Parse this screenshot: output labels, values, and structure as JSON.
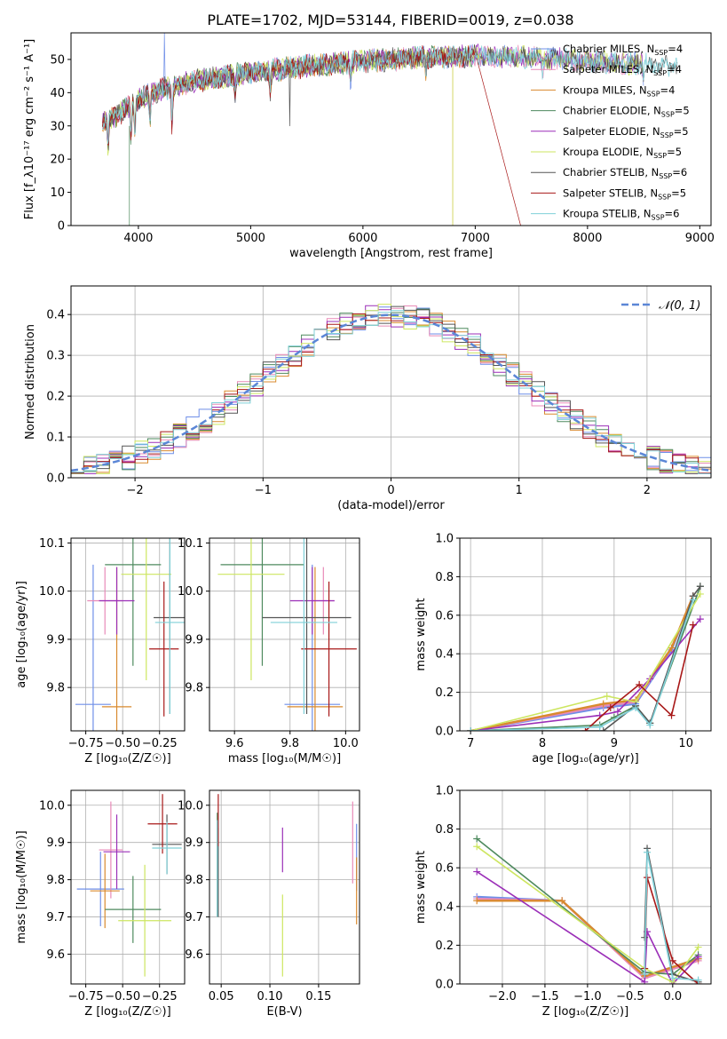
{
  "figure": {
    "title": "PLATE=1702, MJD=53144, FIBERID=0019, z=0.038"
  },
  "models": [
    {
      "name": "Chabrier MILES",
      "nssp": "4",
      "color": "#6f8fe8"
    },
    {
      "name": "Salpeter MILES",
      "nssp": "4",
      "color": "#e88ab8"
    },
    {
      "name": "Kroupa MILES",
      "nssp": "4",
      "color": "#d98a2e"
    },
    {
      "name": "Chabrier ELODIE",
      "nssp": "5",
      "color": "#4e8a5e"
    },
    {
      "name": "Salpeter ELODIE",
      "nssp": "5",
      "color": "#9b2fb8"
    },
    {
      "name": "Kroupa ELODIE",
      "nssp": "5",
      "color": "#cde660"
    },
    {
      "name": "Chabrier STELIB",
      "nssp": "6",
      "color": "#555555"
    },
    {
      "name": "Salpeter STELIB",
      "nssp": "5",
      "color": "#a81818"
    },
    {
      "name": "Kroupa STELIB",
      "nssp": "6",
      "color": "#7fd0d8"
    }
  ],
  "chart_data": [
    {
      "id": "spectrum",
      "type": "line",
      "xlabel": "wavelength [Angstrom, rest frame]",
      "ylabel": "Flux [f_λ10⁻¹⁷ erg cm⁻² s⁻¹ A⁻¹]",
      "xlim": [
        3400,
        9100
      ],
      "ylim": [
        0,
        58
      ],
      "xticks": [
        "4000",
        "5000",
        "6000",
        "7000",
        "8000",
        "9000"
      ],
      "yticks": [
        "0",
        "10",
        "20",
        "30",
        "40",
        "50"
      ],
      "legend": "right",
      "continuum": [
        [
          3680,
          31
        ],
        [
          3800,
          33
        ],
        [
          4000,
          38
        ],
        [
          4200,
          41
        ],
        [
          4500,
          43.5
        ],
        [
          5000,
          46
        ],
        [
          5500,
          48
        ],
        [
          6000,
          49.5
        ],
        [
          6500,
          50.5
        ],
        [
          7000,
          51
        ],
        [
          7500,
          50.5
        ],
        [
          8000,
          49.5
        ],
        [
          8500,
          48.5
        ],
        [
          8800,
          48
        ]
      ],
      "dips": [
        [
          3730,
          -8
        ],
        [
          3934,
          -10
        ],
        [
          3969,
          -9
        ],
        [
          4102,
          -8
        ],
        [
          4300,
          -12
        ],
        [
          4861,
          -6
        ],
        [
          5175,
          -6
        ],
        [
          5890,
          -5
        ],
        [
          6563,
          -4
        ],
        [
          7600,
          -3
        ],
        [
          8500,
          -3
        ]
      ],
      "x_end": [
        8500,
        8500,
        7000,
        7000,
        8500,
        8500,
        8800,
        7000,
        8800
      ]
    },
    {
      "id": "residuals",
      "type": "histogram",
      "xlabel": "(data-model)/error",
      "ylabel": "Normed distribution",
      "xlim": [
        -2.5,
        2.5
      ],
      "ylim": [
        0,
        0.47
      ],
      "xticks": [
        "−2",
        "−1",
        "0",
        "1",
        "2"
      ],
      "yticks": [
        "0.0",
        "0.1",
        "0.2",
        "0.3",
        "0.4"
      ],
      "legend": "top-right",
      "reference_label": "𝒩(0, 1)",
      "reference_color": "#5b86d6",
      "bin_width": 0.1
    },
    {
      "id": "age-vs-z",
      "type": "scatter",
      "xlabel": "Z [log₁₀(Z/Z☉)]",
      "ylabel": "age  [log₁₀(age/yr)]",
      "xlim": [
        -0.85,
        -0.08
      ],
      "ylim": [
        9.71,
        10.11
      ],
      "xticks": [
        "−0.75",
        "−0.50",
        "−0.25"
      ],
      "yticks": [
        "9.8",
        "9.9",
        "10.0",
        "10.1"
      ],
      "points": [
        {
          "x": -0.7,
          "y": 9.765,
          "xerr": 0.12,
          "yerr": 0.29
        },
        {
          "x": -0.62,
          "y": 9.98,
          "xerr": 0.12,
          "yerr": 0.07
        },
        {
          "x": -0.54,
          "y": 9.76,
          "xerr": 0.1,
          "yerr": 0.29
        },
        {
          "x": -0.43,
          "y": 10.055,
          "xerr": 0.19,
          "yerr": 0.21
        },
        {
          "x": -0.54,
          "y": 9.98,
          "xerr": 0.12,
          "yerr": 0.07
        },
        {
          "x": -0.34,
          "y": 10.035,
          "xerr": 0.17,
          "yerr": 0.22
        },
        {
          "x": -0.18,
          "y": 9.945,
          "xerr": 0.11,
          "yerr": 0.2
        },
        {
          "x": -0.22,
          "y": 9.88,
          "xerr": 0.1,
          "yerr": 0.14
        },
        {
          "x": -0.18,
          "y": 9.935,
          "xerr": 0.1,
          "yerr": 0.19
        }
      ]
    },
    {
      "id": "age-vs-mass",
      "type": "scatter",
      "xlabel": "mass [log₁₀(M/M☉)]",
      "ylabel": "",
      "xlim": [
        9.51,
        10.05
      ],
      "ylim": [
        9.71,
        10.11
      ],
      "xticks": [
        "9.6",
        "9.8",
        "10.0"
      ],
      "yticks": [
        "9.8",
        "9.9",
        "10.0",
        "10.1"
      ],
      "points": [
        {
          "x": 9.88,
          "y": 9.765,
          "xerr": 0.1,
          "yerr": 0.29
        },
        {
          "x": 9.92,
          "y": 9.98,
          "xerr": 0.04,
          "yerr": 0.07
        },
        {
          "x": 9.89,
          "y": 9.76,
          "xerr": 0.1,
          "yerr": 0.29
        },
        {
          "x": 9.7,
          "y": 10.055,
          "xerr": 0.15,
          "yerr": 0.21
        },
        {
          "x": 9.88,
          "y": 9.98,
          "xerr": 0.08,
          "yerr": 0.07
        },
        {
          "x": 9.66,
          "y": 10.035,
          "xerr": 0.12,
          "yerr": 0.22
        },
        {
          "x": 9.86,
          "y": 9.945,
          "xerr": 0.16,
          "yerr": 0.2
        },
        {
          "x": 9.94,
          "y": 9.88,
          "xerr": 0.1,
          "yerr": 0.14
        },
        {
          "x": 9.85,
          "y": 9.935,
          "xerr": 0.12,
          "yerr": 0.19
        }
      ]
    },
    {
      "id": "mass-weight-vs-age",
      "type": "line",
      "xlabel": "age  [log₁₀(age/yr)]",
      "ylabel": "mass weight",
      "xlim": [
        6.85,
        10.35
      ],
      "ylim": [
        0,
        1
      ],
      "xticks": [
        "7",
        "8",
        "9",
        "10"
      ],
      "yticks": [
        "0.0",
        "0.2",
        "0.4",
        "0.6",
        "0.8",
        "1.0"
      ],
      "series": [
        {
          "x": [
            7.0,
            8.85,
            9.3,
            9.8,
            10.1
          ],
          "y": [
            0.0,
            0.12,
            0.14,
            0.42,
            0.7
          ]
        },
        {
          "x": [
            7.0,
            8.85,
            9.3,
            9.8,
            10.1
          ],
          "y": [
            0.0,
            0.13,
            0.15,
            0.43,
            0.7
          ]
        },
        {
          "x": [
            7.0,
            8.85,
            9.3,
            9.8,
            10.1
          ],
          "y": [
            0.0,
            0.14,
            0.16,
            0.43,
            0.7
          ]
        },
        {
          "x": [
            7.0,
            8.8,
            9.0,
            9.3,
            9.5,
            10.2
          ],
          "y": [
            0.0,
            0.03,
            0.07,
            0.13,
            0.04,
            0.75
          ]
        },
        {
          "x": [
            7.0,
            8.8,
            9.05,
            9.5,
            10.2
          ],
          "y": [
            0.0,
            0.08,
            0.1,
            0.27,
            0.58
          ]
        },
        {
          "x": [
            7.0,
            8.9,
            9.3,
            10.2
          ],
          "y": [
            0.0,
            0.18,
            0.15,
            0.71
          ]
        },
        {
          "x": [
            7.0,
            8.85,
            9.3,
            9.5,
            10.1,
            10.2
          ],
          "y": [
            0.0,
            0.0,
            0.13,
            0.04,
            0.7,
            0.75
          ]
        },
        {
          "x": [
            8.6,
            8.95,
            9.35,
            9.8,
            10.1
          ],
          "y": [
            0.0,
            0.12,
            0.24,
            0.08,
            0.55
          ]
        },
        {
          "x": [
            7.0,
            8.8,
            9.3,
            9.5,
            10.1
          ],
          "y": [
            0.0,
            0.02,
            0.12,
            0.03,
            0.68
          ]
        }
      ]
    },
    {
      "id": "mass-vs-z",
      "type": "scatter",
      "xlabel": "Z [log₁₀(Z/Z☉)]",
      "ylabel": "mass [log₁₀(M/M☉)]",
      "xlim": [
        -0.85,
        -0.08
      ],
      "ylim": [
        9.52,
        10.04
      ],
      "xticks": [
        "−0.75",
        "−0.50",
        "−0.25"
      ],
      "yticks": [
        "9.6",
        "9.7",
        "9.8",
        "9.9",
        "10.0"
      ],
      "points": [
        {
          "x": -0.65,
          "y": 9.775,
          "xerr": 0.16,
          "yerr": 0.1
        },
        {
          "x": -0.58,
          "y": 9.88,
          "xerr": 0.08,
          "yerr": 0.13
        },
        {
          "x": -0.62,
          "y": 9.77,
          "xerr": 0.1,
          "yerr": 0.1
        },
        {
          "x": -0.43,
          "y": 9.72,
          "xerr": 0.19,
          "yerr": 0.09
        },
        {
          "x": -0.54,
          "y": 9.875,
          "xerr": 0.09,
          "yerr": 0.1
        },
        {
          "x": -0.35,
          "y": 9.69,
          "xerr": 0.18,
          "yerr": 0.15
        },
        {
          "x": -0.2,
          "y": 9.895,
          "xerr": 0.1,
          "yerr": 0.08
        },
        {
          "x": -0.23,
          "y": 9.95,
          "xerr": 0.1,
          "yerr": 0.08
        },
        {
          "x": -0.2,
          "y": 9.885,
          "xerr": 0.1,
          "yerr": 0.07
        }
      ]
    },
    {
      "id": "mass-vs-ebv",
      "type": "scatter",
      "xlabel": "E(B-V)",
      "ylabel": "",
      "xlim": [
        0.038,
        0.192
      ],
      "ylim": [
        9.52,
        10.04
      ],
      "xticks": [
        "0.05",
        "0.10",
        "0.15"
      ],
      "yticks": [
        "9.6",
        "9.7",
        "9.8",
        "9.9",
        "10.0"
      ],
      "points": [
        {
          "x": 0.189,
          "y": 9.86,
          "xerr": 0,
          "yerr": 0.09
        },
        {
          "x": 0.185,
          "y": 9.9,
          "xerr": 0,
          "yerr": 0.11
        },
        {
          "x": 0.189,
          "y": 9.77,
          "xerr": 0,
          "yerr": 0.09
        },
        {
          "x": 0.046,
          "y": 9.84,
          "xerr": 0,
          "yerr": 0.14
        },
        {
          "x": 0.113,
          "y": 9.88,
          "xerr": 0,
          "yerr": 0.06
        },
        {
          "x": 0.113,
          "y": 9.65,
          "xerr": 0,
          "yerr": 0.11
        },
        {
          "x": 0.047,
          "y": 9.82,
          "xerr": 0,
          "yerr": 0.12
        },
        {
          "x": 0.047,
          "y": 9.96,
          "xerr": 0,
          "yerr": 0.07
        },
        {
          "x": 0.046,
          "y": 9.83,
          "xerr": 0,
          "yerr": 0.13
        }
      ]
    },
    {
      "id": "mass-weight-vs-z",
      "type": "line",
      "xlabel": "Z [log₁₀(Z/Z☉)]",
      "ylabel": "mass weight",
      "xlim": [
        -2.5,
        0.45
      ],
      "ylim": [
        0,
        1
      ],
      "xticks": [
        "−2.0",
        "−1.5",
        "−1.0",
        "−0.5",
        "0.0"
      ],
      "yticks": [
        "0.0",
        "0.2",
        "0.4",
        "0.6",
        "0.8",
        "1.0"
      ],
      "series": [
        {
          "x": [
            -2.3,
            -1.3,
            -0.33,
            0.3
          ],
          "y": [
            0.45,
            0.43,
            0.04,
            0.13
          ]
        },
        {
          "x": [
            -2.3,
            -1.3,
            -0.33,
            0.3
          ],
          "y": [
            0.44,
            0.43,
            0.03,
            0.12
          ]
        },
        {
          "x": [
            -2.3,
            -1.3,
            -0.33,
            0.3
          ],
          "y": [
            0.43,
            0.43,
            0.04,
            0.13
          ]
        },
        {
          "x": [
            -2.3,
            -0.33,
            0.0,
            0.3
          ],
          "y": [
            0.75,
            0.06,
            0.05,
            0.15
          ]
        },
        {
          "x": [
            -2.3,
            -0.33,
            -0.3,
            0.0,
            0.3
          ],
          "y": [
            0.58,
            0.01,
            0.27,
            0.0,
            0.14
          ]
        },
        {
          "x": [
            -2.3,
            -0.33,
            0.0,
            0.3
          ],
          "y": [
            0.71,
            0.08,
            0.01,
            0.19
          ]
        },
        {
          "x": [
            -0.33,
            -0.3,
            0.0,
            0.3
          ],
          "y": [
            0.24,
            0.7,
            0.05,
            0.01
          ]
        },
        {
          "x": [
            -0.33,
            -0.3,
            0.0,
            0.3
          ],
          "y": [
            0.08,
            0.55,
            0.12,
            0.0
          ]
        },
        {
          "x": [
            -0.33,
            -0.3,
            0.0,
            0.3
          ],
          "y": [
            0.05,
            0.68,
            0.03,
            0.02
          ]
        }
      ]
    }
  ]
}
